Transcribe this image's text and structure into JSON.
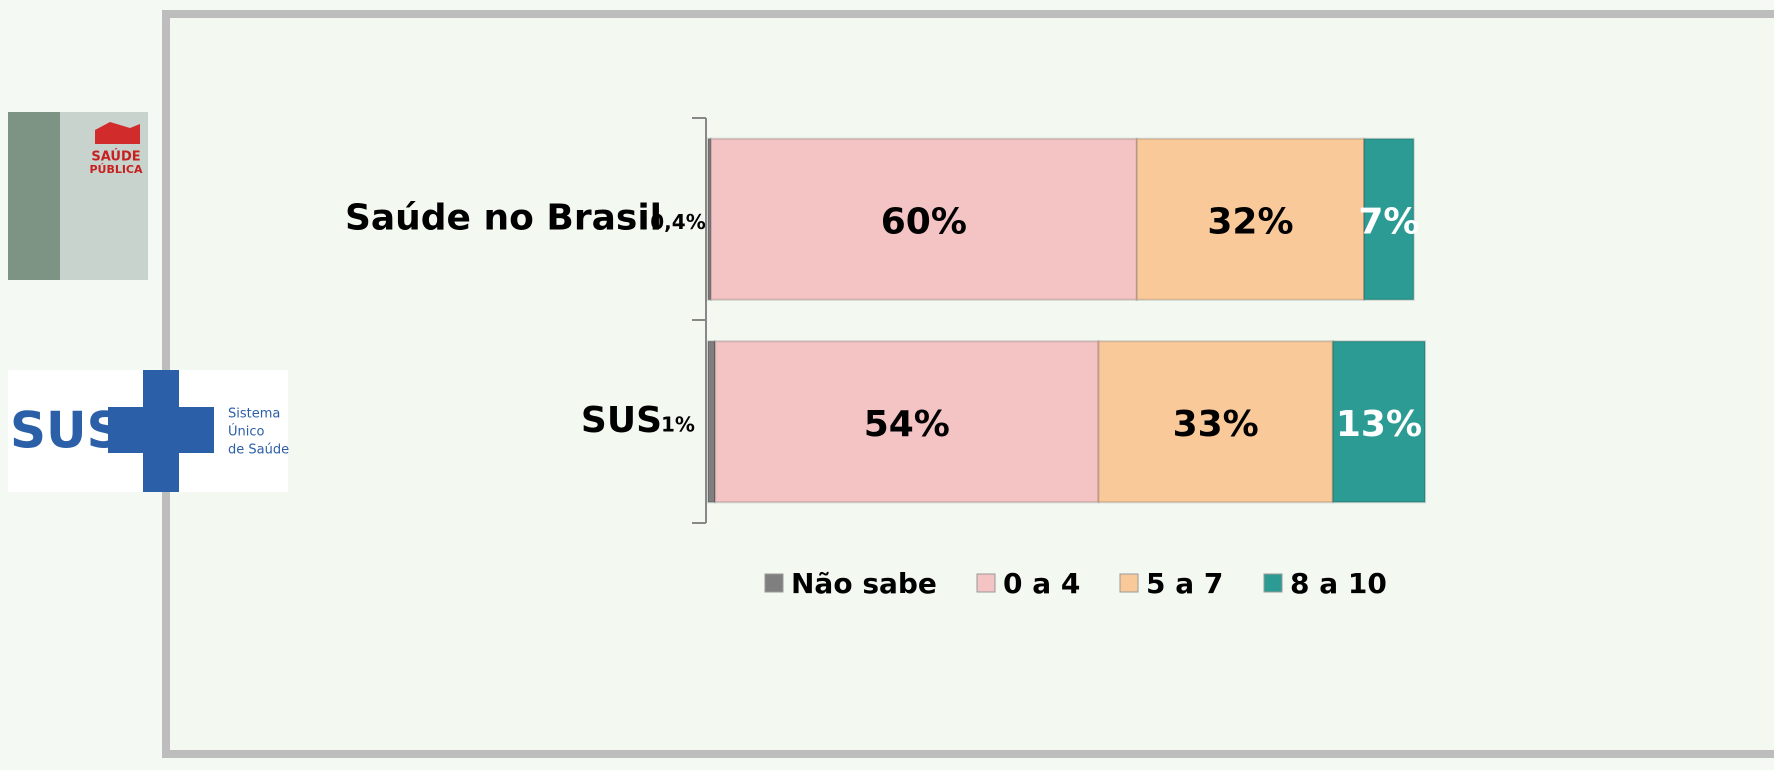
{
  "chart_data": {
    "type": "stacked-bar-horizontal",
    "categories": [
      "Saúde no Brasil",
      "SUS"
    ],
    "series": [
      {
        "name": "Não sabe",
        "color": "#7f7f7f",
        "values": [
          0.4,
          1
        ],
        "value_labels": [
          "0,4%",
          "1%"
        ]
      },
      {
        "name": "0 a 4",
        "color": "#f4c3c4",
        "values": [
          60,
          54
        ],
        "value_labels": [
          "60%",
          "54%"
        ]
      },
      {
        "name": "5 a 7",
        "color": "#f9c99a",
        "values": [
          32,
          33
        ],
        "value_labels": [
          "32%",
          "33%"
        ]
      },
      {
        "name": "8 a 10",
        "color": "#2b9b94",
        "values": [
          7,
          13
        ],
        "value_labels": [
          "7%",
          "13%"
        ]
      }
    ],
    "xlim": [
      0,
      100
    ],
    "legend": "bottom"
  },
  "logos": {
    "saude_publica": [
      "SAÚDE",
      "PÚBLICA"
    ],
    "sus": "SUS",
    "sus_caption": [
      "Sistema",
      "Único",
      "de Saúde"
    ]
  }
}
